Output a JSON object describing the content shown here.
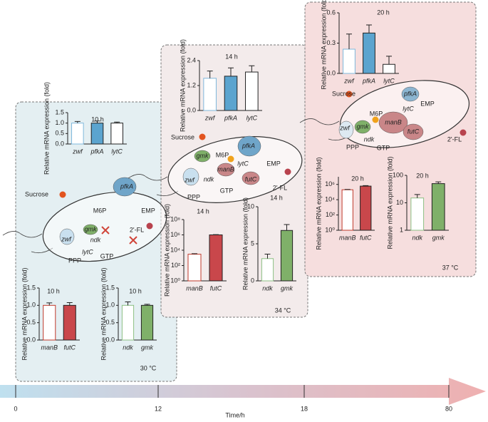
{
  "chart_data": [
    {
      "type": "bar",
      "title": "10 h",
      "ylabel": "Relative mRNA expression (fold)",
      "categories": [
        "zwf",
        "pfkA",
        "lytC"
      ],
      "values": [
        1.0,
        1.0,
        1.0
      ],
      "errors": [
        0.08,
        0.1,
        0.05
      ],
      "ylim": [
        0,
        1.5
      ],
      "yticks": [
        {
          "value": 0,
          "label": "0.0"
        },
        {
          "value": 0.5,
          "label": "0.5"
        },
        {
          "value": 1,
          "label": "1.0"
        },
        {
          "value": 1.5,
          "label": "1.5"
        }
      ],
      "log_scale": false,
      "edge_colors": [
        "#7fb8dc",
        "#222222",
        "#222222"
      ],
      "fill_colors": [
        "#ffffff",
        "#5ba4cf",
        "#ffffff"
      ]
    },
    {
      "type": "bar",
      "title": "10 h",
      "ylabel": "Relative mRNA expression (fold)",
      "categories": [
        "manB",
        "futC"
      ],
      "values": [
        1.0,
        1.0
      ],
      "errors": [
        0.07,
        0.08
      ],
      "ylim": [
        0,
        1.5
      ],
      "yticks": [
        {
          "value": 0,
          "label": "0.0"
        },
        {
          "value": 0.5,
          "label": "0.5"
        },
        {
          "value": 1,
          "label": "1.0"
        },
        {
          "value": 1.5,
          "label": "1.5"
        }
      ],
      "log_scale": false,
      "edge_colors": [
        "#c0392b",
        "#222222"
      ],
      "fill_colors": [
        "#ffffff",
        "#c9474b"
      ]
    },
    {
      "type": "bar",
      "title": "10 h",
      "ylabel": "Relative mRNA expression (fold)",
      "categories": [
        "ndk",
        "gmk"
      ],
      "values": [
        1.0,
        1.0
      ],
      "errors": [
        0.1,
        0.03
      ],
      "ylim": [
        0,
        1.5
      ],
      "yticks": [
        {
          "value": 0,
          "label": "0.0"
        },
        {
          "value": 0.5,
          "label": "0.5"
        },
        {
          "value": 1,
          "label": "1.0"
        },
        {
          "value": 1.5,
          "label": "1.5"
        }
      ],
      "log_scale": false,
      "edge_colors": [
        "#8cc084",
        "#222222"
      ],
      "fill_colors": [
        "#ffffff",
        "#7fb069"
      ]
    },
    {
      "type": "bar",
      "title": "14 h",
      "ylabel": "Relative mRNA expression (fold)",
      "categories": [
        "zwf",
        "pfkA",
        "lytC"
      ],
      "values": [
        1.55,
        1.65,
        1.85
      ],
      "errors": [
        0.35,
        0.4,
        0.3
      ],
      "ylim": [
        0,
        2.4
      ],
      "yticks": [
        {
          "value": 0,
          "label": "0.0"
        },
        {
          "value": 1.2,
          "label": "1.2"
        },
        {
          "value": 2.4,
          "label": "2.4"
        }
      ],
      "log_scale": false,
      "edge_colors": [
        "#7fb8dc",
        "#222222",
        "#222222"
      ],
      "fill_colors": [
        "#ffffff",
        "#5ba4cf",
        "#ffffff"
      ]
    },
    {
      "type": "bar",
      "title": "14 h",
      "ylabel": "Relative mRNA expression (fold)",
      "categories": [
        "manB",
        "futC"
      ],
      "values": [
        3000,
        1000000
      ],
      "errors": [
        500,
        80000
      ],
      "ylim": [
        1,
        100000000
      ],
      "yticks": [
        {
          "value": 1,
          "label": "10⁰"
        },
        {
          "value": 100,
          "label": "10²"
        },
        {
          "value": 10000,
          "label": "10⁴"
        },
        {
          "value": 1000000,
          "label": "10⁶"
        },
        {
          "value": 100000000,
          "label": "10⁸"
        }
      ],
      "log_scale": true,
      "edge_colors": [
        "#c0392b",
        "#222222"
      ],
      "fill_colors": [
        "#ffffff",
        "#c9474b"
      ]
    },
    {
      "type": "bar",
      "title": "14 h",
      "ylabel": "Relative mRNA expression (fold)",
      "categories": [
        "ndk",
        "gmk"
      ],
      "values": [
        3.0,
        6.8
      ],
      "errors": [
        0.6,
        0.8
      ],
      "ylim": [
        0,
        10
      ],
      "yticks": [
        0,
        5,
        10
      ],
      "log_scale": false,
      "edge_colors": [
        "#8cc084",
        "#222222"
      ],
      "fill_colors": [
        "#ffffff",
        "#7fb069"
      ]
    },
    {
      "type": "bar",
      "title": "20 h",
      "ylabel": "Relative mRNA expression (fold)",
      "categories": [
        "zwf",
        "pfkA",
        "lytC"
      ],
      "values": [
        0.24,
        0.4,
        0.09
      ],
      "errors": [
        0.15,
        0.08,
        0.08
      ],
      "ylim": [
        0,
        0.6
      ],
      "yticks": [
        {
          "value": 0,
          "label": "0.0"
        },
        {
          "value": 0.3,
          "label": "0.3"
        },
        {
          "value": 0.6,
          "label": "0.6"
        }
      ],
      "log_scale": false,
      "edge_colors": [
        "#7fb8dc",
        "#222222",
        "#222222"
      ],
      "fill_colors": [
        "#ffffff",
        "#5ba4cf",
        "#ffffff"
      ]
    },
    {
      "type": "bar",
      "title": "20 h",
      "ylabel": "Relative mRNA expression (fold)",
      "categories": [
        "manB",
        "futC"
      ],
      "values": [
        200000,
        600000
      ],
      "errors": [
        20000,
        100000
      ],
      "ylim": [
        1,
        10000000
      ],
      "yticks": [
        {
          "value": 1,
          "label": "10⁰"
        },
        {
          "value": 100,
          "label": "10²"
        },
        {
          "value": 10000,
          "label": "10⁴"
        },
        {
          "value": 1000000,
          "label": "10⁶"
        }
      ],
      "log_scale": true,
      "edge_colors": [
        "#c0392b",
        "#222222"
      ],
      "fill_colors": [
        "#ffffff",
        "#c9474b"
      ]
    },
    {
      "type": "bar",
      "title": "20 h",
      "ylabel": "Relative mRNA expression (fold)",
      "categories": [
        "ndk",
        "gmk"
      ],
      "values": [
        15,
        50
      ],
      "errors": [
        5,
        8
      ],
      "ylim": [
        1,
        100
      ],
      "yticks": [
        1,
        10,
        100
      ],
      "log_scale": true,
      "edge_colors": [
        "#8cc084",
        "#222222"
      ],
      "fill_colors": [
        "#ffffff",
        "#7fb069"
      ]
    }
  ],
  "panels": [
    {
      "temperature": "30 °C",
      "diagram_labels": [
        "Sucrose",
        "M6P",
        "pfkA",
        "gmk",
        "zwf",
        "ndk",
        "lytC",
        "GTP",
        "PPP",
        "EMP",
        "2'-FL"
      ]
    },
    {
      "temperature": "34 °C",
      "diagram_labels": [
        "Sucrose",
        "M6P",
        "pfkA",
        "gmk",
        "manB",
        "lytC",
        "futC",
        "zwf",
        "ndk",
        "GTP",
        "PPP",
        "EMP",
        "2'-FL"
      ]
    },
    {
      "temperature": "37 °C",
      "diagram_labels": [
        "Sucrose",
        "M6P",
        "pfkA",
        "gmk",
        "manB",
        "lytC",
        "futC",
        "zwf",
        "ndk",
        "GTP",
        "PPP",
        "EMP",
        "2'-FL"
      ]
    }
  ],
  "timeline": {
    "labels": [
      "0",
      "12",
      "18",
      "80"
    ],
    "title": "Time/h"
  }
}
